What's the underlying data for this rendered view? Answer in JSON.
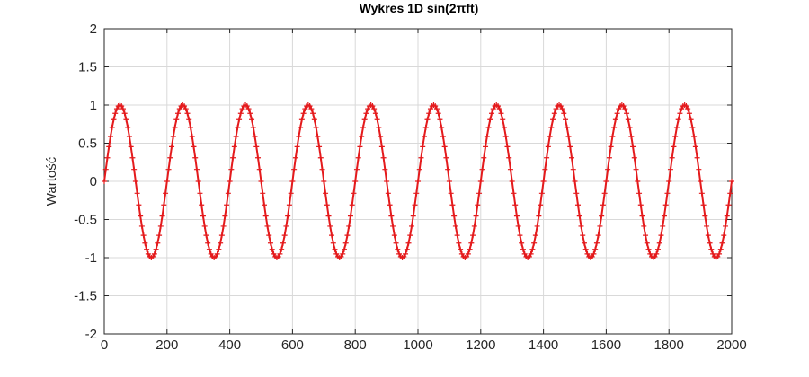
{
  "chart_data": {
    "type": "line",
    "title": "Wykres 1D sin(2πft)",
    "xlabel": "",
    "ylabel": "Wartość",
    "xlim": [
      0,
      2000
    ],
    "ylim": [
      -2,
      2
    ],
    "grid": true,
    "x_ticks": [
      "0",
      "200",
      "400",
      "600",
      "800",
      "1000",
      "1200",
      "1400",
      "1600",
      "1800",
      "2000"
    ],
    "y_ticks": [
      "2",
      "1.5",
      "1",
      "0.5",
      "0",
      "-0.5",
      "-1",
      "-1.5",
      "-2"
    ],
    "series": [
      {
        "color": "#e41a1c",
        "marker": "+",
        "function": "sin",
        "amplitude": 1,
        "period": 200,
        "phase": 0,
        "x_start": 0,
        "x_end": 2000,
        "sample_step": 5
      }
    ]
  },
  "colors": {
    "axis": "#262626",
    "grid": "#d9d9d9",
    "background": "#ffffff"
  }
}
